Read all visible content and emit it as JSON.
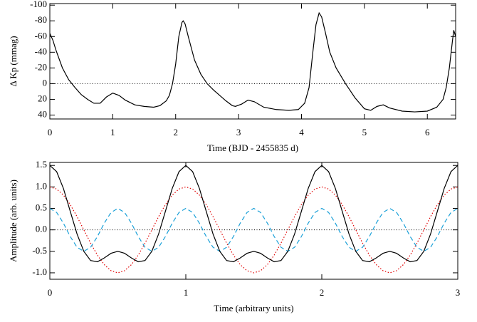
{
  "chart_data": [
    {
      "type": "line",
      "x_label": "Time (BJD - 2455835 d)",
      "y_label": "Δ Kp (mmag)",
      "xlim": [
        0,
        6.45
      ],
      "ylim": [
        45,
        -102
      ],
      "xticks": [
        0,
        1,
        2,
        3,
        4,
        5,
        6
      ],
      "yticks": [
        -100,
        -80,
        -60,
        -40,
        -20,
        0,
        20,
        40
      ],
      "hline": 0,
      "x": [
        0,
        0.05,
        0.1,
        0.2,
        0.3,
        0.4,
        0.5,
        0.6,
        0.7,
        0.8,
        0.9,
        1.0,
        1.1,
        1.2,
        1.35,
        1.5,
        1.65,
        1.75,
        1.85,
        1.9,
        1.95,
        2.0,
        2.05,
        2.1,
        2.12,
        2.15,
        2.2,
        2.3,
        2.4,
        2.5,
        2.6,
        2.7,
        2.8,
        2.9,
        2.95,
        3.05,
        3.15,
        3.25,
        3.4,
        3.6,
        3.8,
        3.95,
        4.05,
        4.12,
        4.18,
        4.23,
        4.28,
        4.32,
        4.38,
        4.45,
        4.55,
        4.7,
        4.85,
        5.0,
        5.1,
        5.2,
        5.3,
        5.4,
        5.6,
        5.8,
        6.0,
        6.15,
        6.25,
        6.3,
        6.35,
        6.4,
        6.42,
        6.45
      ],
      "series": [
        {
          "color": "#000000",
          "dash": "solid",
          "values": [
            -64,
            -55,
            -42,
            -20,
            -5,
            5,
            14,
            20,
            25,
            25,
            17,
            12,
            15,
            21,
            27,
            29,
            30,
            28,
            22,
            15,
            0,
            -25,
            -60,
            -78,
            -80,
            -76,
            -60,
            -30,
            -12,
            0,
            8,
            15,
            22,
            28,
            29,
            26,
            21,
            23,
            30,
            33,
            34,
            33,
            25,
            5,
            -40,
            -75,
            -90,
            -85,
            -65,
            -40,
            -20,
            0,
            18,
            32,
            34,
            29,
            27,
            31,
            35,
            36,
            35,
            30,
            20,
            5,
            -20,
            -55,
            -68,
            -60
          ]
        }
      ]
    },
    {
      "type": "line",
      "x_label": "Time (arbitrary units)",
      "y_label": "Amplitude (arb. units)",
      "xlim": [
        0,
        3
      ],
      "ylim": [
        -1.15,
        1.57
      ],
      "xticks": [
        0,
        1,
        2,
        3
      ],
      "yticks": [
        {
          "value": -1,
          "label": "-1.0"
        },
        -0.5,
        {
          "value": 0,
          "label": "0.0"
        },
        0.5,
        {
          "value": 1,
          "label": "1.0"
        },
        1.5
      ],
      "hline": 0,
      "x": [
        0,
        0.05,
        0.1,
        0.15,
        0.2,
        0.25,
        0.3,
        0.35,
        0.4,
        0.45,
        0.5,
        0.55,
        0.6,
        0.65,
        0.7,
        0.75,
        0.8,
        0.85,
        0.9,
        0.95,
        1,
        1.05,
        1.1,
        1.15,
        1.2,
        1.25,
        1.3,
        1.35,
        1.4,
        1.45,
        1.5,
        1.55,
        1.6,
        1.65,
        1.7,
        1.75,
        1.8,
        1.85,
        1.9,
        1.95,
        2,
        2.05,
        2.1,
        2.15,
        2.2,
        2.25,
        2.3,
        2.35,
        2.4,
        2.45,
        2.5,
        2.55,
        2.6,
        2.65,
        2.7,
        2.75,
        2.8,
        2.85,
        2.9,
        2.95,
        3
      ],
      "series": [
        {
          "color": "#e00000",
          "dash": "dotted",
          "values": [
            1,
            0.951,
            0.809,
            0.588,
            0.309,
            0,
            -0.309,
            -0.588,
            -0.809,
            -0.951,
            -1,
            -0.951,
            -0.809,
            -0.588,
            -0.309,
            0,
            0.309,
            0.588,
            0.809,
            0.951,
            1,
            0.951,
            0.809,
            0.588,
            0.309,
            0,
            -0.309,
            -0.588,
            -0.809,
            -0.951,
            -1,
            -0.951,
            -0.809,
            -0.588,
            -0.309,
            0,
            0.309,
            0.588,
            0.809,
            0.951,
            1,
            0.951,
            0.809,
            0.588,
            0.309,
            0,
            -0.309,
            -0.588,
            -0.809,
            -0.951,
            -1,
            -0.951,
            -0.809,
            -0.588,
            -0.309,
            0,
            0.309,
            0.588,
            0.809,
            0.951,
            1
          ]
        },
        {
          "color": "#1aa0d8",
          "dash": "dashed",
          "values": [
            0.5,
            0.405,
            0.155,
            -0.155,
            -0.405,
            -0.5,
            -0.405,
            -0.155,
            0.155,
            0.405,
            0.5,
            0.405,
            0.155,
            -0.155,
            -0.405,
            -0.5,
            -0.405,
            -0.155,
            0.155,
            0.405,
            0.5,
            0.405,
            0.155,
            -0.155,
            -0.405,
            -0.5,
            -0.405,
            -0.155,
            0.155,
            0.405,
            0.5,
            0.405,
            0.155,
            -0.155,
            -0.405,
            -0.5,
            -0.405,
            -0.155,
            0.155,
            0.405,
            0.5,
            0.405,
            0.155,
            -0.155,
            -0.405,
            -0.5,
            -0.405,
            -0.155,
            0.155,
            0.405,
            0.5,
            0.405,
            0.155,
            -0.155,
            -0.405,
            -0.5,
            -0.405,
            -0.155,
            0.155,
            0.405,
            0.5
          ]
        },
        {
          "color": "#000000",
          "dash": "solid",
          "values": [
            1.5,
            1.356,
            0.964,
            0.433,
            -0.096,
            -0.5,
            -0.714,
            -0.743,
            -0.654,
            -0.546,
            -0.5,
            -0.546,
            -0.654,
            -0.743,
            -0.714,
            -0.5,
            -0.096,
            0.433,
            0.964,
            1.356,
            1.5,
            1.356,
            0.964,
            0.433,
            -0.096,
            -0.5,
            -0.714,
            -0.743,
            -0.654,
            -0.546,
            -0.5,
            -0.546,
            -0.654,
            -0.743,
            -0.714,
            -0.5,
            -0.096,
            0.433,
            0.964,
            1.356,
            1.5,
            1.356,
            0.964,
            0.433,
            -0.096,
            -0.5,
            -0.714,
            -0.743,
            -0.654,
            -0.546,
            -0.5,
            -0.546,
            -0.654,
            -0.743,
            -0.714,
            -0.5,
            -0.096,
            0.433,
            0.964,
            1.356,
            1.5
          ]
        }
      ]
    }
  ]
}
